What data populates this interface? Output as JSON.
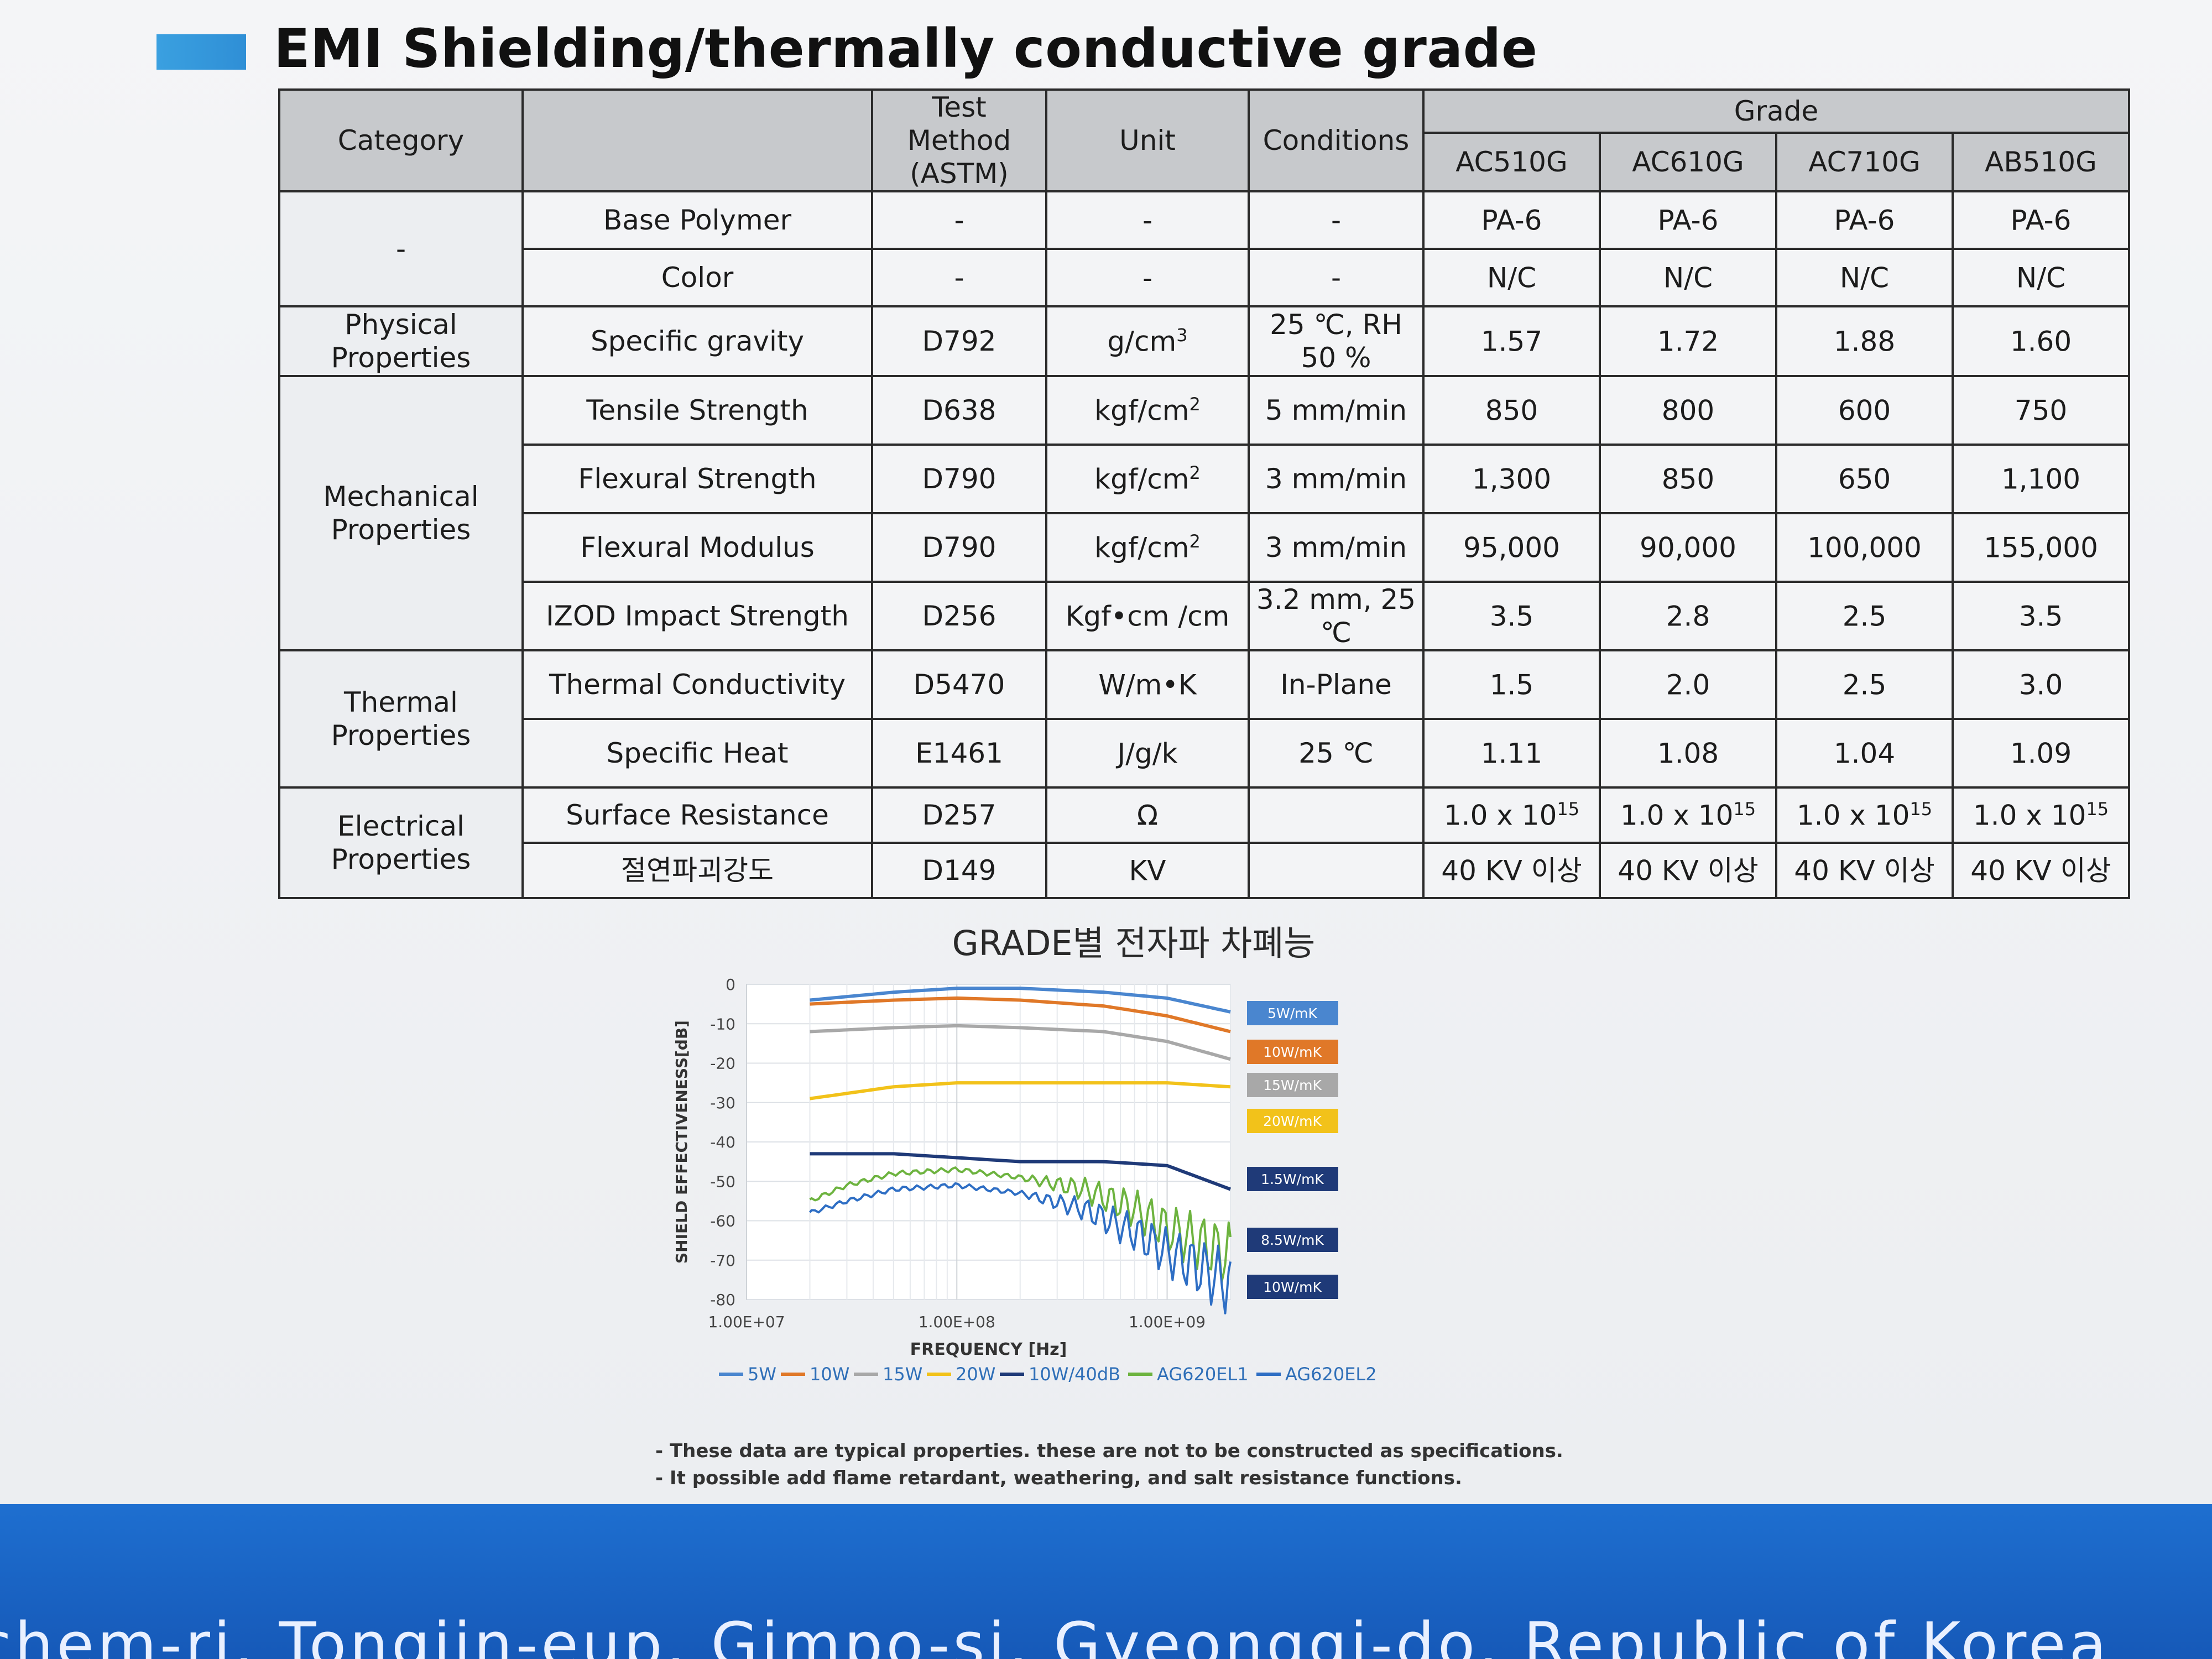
{
  "page": {
    "title": "EMI Shielding/thermally conductive grade",
    "notes": [
      "- These data are typical properties. these are not to be constructed as specifications.",
      "- It possible add flame retardant, weathering, and salt resistance functions."
    ],
    "footer_text": "chem-ri, Tongjin-eup, Gimpo-si, Gyeonggi-do, Republic of Korea"
  },
  "table": {
    "headers": {
      "category": "Category",
      "test_method": "Test Method (ASTM)",
      "unit": "Unit",
      "conditions": "Conditions",
      "grade": "Grade"
    },
    "grades": [
      "AC510G",
      "AC610G",
      "AC710G",
      "AB510G"
    ],
    "groups": [
      {
        "category": "-",
        "rows": [
          {
            "property": "Base Polymer",
            "method": "-",
            "unit": "-",
            "unit_sup": "",
            "conditions": "-",
            "values": [
              "PA-6",
              "PA-6",
              "PA-6",
              "PA-6"
            ],
            "value_sup": ""
          },
          {
            "property": "Color",
            "method": "-",
            "unit": "-",
            "unit_sup": "",
            "conditions": "-",
            "values": [
              "N/C",
              "N/C",
              "N/C",
              "N/C"
            ],
            "value_sup": ""
          }
        ]
      },
      {
        "category": "Physical Properties",
        "rows": [
          {
            "property": "Specific gravity",
            "method": "D792",
            "unit": "g/cm",
            "unit_sup": "3",
            "conditions": "25 ℃, RH 50 %",
            "values": [
              "1.57",
              "1.72",
              "1.88",
              "1.60"
            ],
            "value_sup": ""
          }
        ]
      },
      {
        "category": "Mechanical Properties",
        "rows": [
          {
            "property": "Tensile Strength",
            "method": "D638",
            "unit": "kgf/cm",
            "unit_sup": "2",
            "conditions": "5 mm/min",
            "values": [
              "850",
              "800",
              "600",
              "750"
            ],
            "value_sup": ""
          },
          {
            "property": "Flexural Strength",
            "method": "D790",
            "unit": "kgf/cm",
            "unit_sup": "2",
            "conditions": "3 mm/min",
            "values": [
              "1,300",
              "850",
              "650",
              "1,100"
            ],
            "value_sup": ""
          },
          {
            "property": "Flexural Modulus",
            "method": "D790",
            "unit": "kgf/cm",
            "unit_sup": "2",
            "conditions": "3 mm/min",
            "values": [
              "95,000",
              "90,000",
              "100,000",
              "155,000"
            ],
            "value_sup": ""
          },
          {
            "property": "IZOD Impact Strength",
            "method": "D256",
            "unit": "Kgf•cm /cm",
            "unit_sup": "",
            "conditions": "3.2 mm, 25 ℃",
            "values": [
              "3.5",
              "2.8",
              "2.5",
              "3.5"
            ],
            "value_sup": ""
          }
        ]
      },
      {
        "category": "Thermal Properties",
        "rows": [
          {
            "property": "Thermal Conductivity",
            "method": "D5470",
            "unit": "W/m•K",
            "unit_sup": "",
            "conditions": "In-Plane",
            "values": [
              "1.5",
              "2.0",
              "2.5",
              "3.0"
            ],
            "value_sup": ""
          },
          {
            "property": "Specific Heat",
            "method": "E1461",
            "unit": "J/g/k",
            "unit_sup": "",
            "conditions": "25 ℃",
            "values": [
              "1.11",
              "1.08",
              "1.04",
              "1.09"
            ],
            "value_sup": ""
          }
        ]
      },
      {
        "category": "Electrical Properties",
        "rows": [
          {
            "property": "Surface  Resistance",
            "method": "D257",
            "unit": "Ω",
            "unit_sup": "",
            "conditions": "",
            "values": [
              "1.0 x 10",
              "1.0 x 10",
              "1.0 x 10",
              "1.0 x 10"
            ],
            "value_sup": "15"
          },
          {
            "property": "절연파괴강도",
            "method": "D149",
            "unit": "KV",
            "unit_sup": "",
            "conditions": "",
            "values": [
              "40 KV  이상",
              "40 KV  이상",
              "40 KV  이상",
              "40 KV  이상"
            ],
            "value_sup": ""
          }
        ]
      }
    ]
  },
  "chart_data": {
    "type": "line",
    "title": "GRADE별 전자파 차폐능",
    "xlabel": "FREQUENCY [Hz]",
    "ylabel": "SHIELD EFFECTIVENESS[dB]",
    "x_scale": "log",
    "xlim": [
      10000000,
      2000000000
    ],
    "ylim": [
      -80,
      0
    ],
    "x_ticks": [
      10000000,
      100000000,
      1000000000
    ],
    "x_tick_labels": [
      "1.00E+07",
      "1.00E+08",
      "1.00E+09"
    ],
    "y_ticks": [
      0,
      -10,
      -20,
      -30,
      -40,
      -50,
      -60,
      -70,
      -80
    ],
    "grid": true,
    "legend_bottom": [
      "5W",
      "10W",
      "15W",
      "20W",
      "10W/40dB",
      "AG620EL1",
      "AG620EL2"
    ],
    "series": [
      {
        "name": "5W",
        "tag": "5W/mK",
        "color": "#4a86cf",
        "noisy": false,
        "x": [
          20000000,
          50000000,
          100000000,
          200000000,
          500000000,
          1000000000,
          2000000000
        ],
        "y": [
          -4,
          -2,
          -1,
          -1,
          -2,
          -3.5,
          -7
        ]
      },
      {
        "name": "10W",
        "tag": "10W/mK",
        "color": "#e07828",
        "noisy": false,
        "x": [
          20000000,
          50000000,
          100000000,
          200000000,
          500000000,
          1000000000,
          2000000000
        ],
        "y": [
          -5,
          -4,
          -3.5,
          -4,
          -5.5,
          -8,
          -12
        ]
      },
      {
        "name": "15W",
        "tag": "15W/mK",
        "color": "#a8a8a8",
        "noisy": false,
        "x": [
          20000000,
          50000000,
          100000000,
          200000000,
          500000000,
          1000000000,
          2000000000
        ],
        "y": [
          -12,
          -11,
          -10.5,
          -11,
          -12,
          -14.5,
          -19
        ]
      },
      {
        "name": "20W",
        "tag": "20W/mK",
        "color": "#f2c21a",
        "noisy": false,
        "x": [
          20000000,
          50000000,
          100000000,
          200000000,
          500000000,
          1000000000,
          2000000000
        ],
        "y": [
          -29,
          -26,
          -25,
          -25,
          -25,
          -25,
          -26
        ]
      },
      {
        "name": "10W/40dB",
        "tag": "1.5W/mK",
        "color": "#1f3a78",
        "noisy": false,
        "x": [
          20000000,
          50000000,
          100000000,
          200000000,
          500000000,
          1000000000,
          2000000000
        ],
        "y": [
          -43,
          -43,
          -44,
          -45,
          -45,
          -46,
          -52
        ]
      },
      {
        "name": "AG620EL1",
        "tag": "8.5W/mK",
        "color": "#6db33f",
        "noisy": true,
        "x": [
          20000000,
          30000000,
          50000000,
          100000000,
          200000000,
          400000000,
          700000000,
          1000000000,
          2000000000
        ],
        "y": [
          -55,
          -51,
          -48,
          -47,
          -49,
          -52,
          -57,
          -62,
          -69
        ]
      },
      {
        "name": "AG620EL2",
        "tag": "10W/mK",
        "color": "#2e6ec4",
        "noisy": true,
        "x": [
          20000000,
          30000000,
          50000000,
          100000000,
          200000000,
          400000000,
          700000000,
          1000000000,
          2000000000
        ],
        "y": [
          -58,
          -55,
          -52,
          -51,
          -53,
          -57,
          -63,
          -68,
          -76
        ]
      }
    ],
    "tag_colors": [
      "#4a86cf",
      "#e07828",
      "#a8a8a8",
      "#f2c21a",
      "#1f3a78",
      "#1f3a78",
      "#1f3a78"
    ]
  }
}
